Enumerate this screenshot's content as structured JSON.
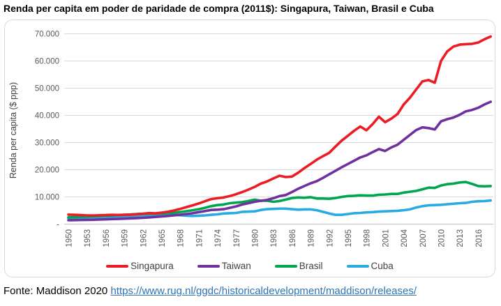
{
  "title": "Renda per capita em poder de paridade de compra (2011$): Singapura, Taiwan, Brasil e Cuba",
  "footer": {
    "prefix": "Fonte: Maddison 2020",
    "link": "https://www.rug.nl/ggdc/historicaldevelopment/maddison/releases/"
  },
  "chart_data": {
    "type": "line",
    "title": "Renda per capita em poder de paridade de compra (2011$): Singapura, Taiwan, Brasil e Cuba",
    "xlabel": "",
    "ylabel": "Renda per capita ($ ppp)",
    "ylim": [
      0,
      70000
    ],
    "ytick_step": 10000,
    "ytick_zero_label": "-",
    "grid": "horizontal",
    "gridline_color": "#d9d9d9",
    "axis_line_color": "#bfbfbf",
    "axis_text_color": "#595959",
    "legend_position": "bottom",
    "xticks": [
      1950,
      1953,
      1956,
      1959,
      1962,
      1965,
      1968,
      1971,
      1974,
      1977,
      1980,
      1983,
      1986,
      1989,
      1992,
      1995,
      1998,
      2001,
      2004,
      2007,
      2010,
      2013,
      2016
    ],
    "x": [
      1950,
      1951,
      1952,
      1953,
      1954,
      1955,
      1956,
      1957,
      1958,
      1959,
      1960,
      1961,
      1962,
      1963,
      1964,
      1965,
      1966,
      1967,
      1968,
      1969,
      1970,
      1971,
      1972,
      1973,
      1974,
      1975,
      1976,
      1977,
      1978,
      1979,
      1980,
      1981,
      1982,
      1983,
      1984,
      1985,
      1986,
      1987,
      1988,
      1989,
      1990,
      1991,
      1992,
      1993,
      1994,
      1995,
      1996,
      1997,
      1998,
      1999,
      2000,
      2001,
      2002,
      2003,
      2004,
      2005,
      2006,
      2007,
      2008,
      2009,
      2010,
      2011,
      2012,
      2013,
      2014,
      2015,
      2016,
      2017,
      2018
    ],
    "series": [
      {
        "name": "Singapura",
        "color": "#ec1c24",
        "values": [
          3500,
          3400,
          3300,
          3200,
          3150,
          3250,
          3300,
          3400,
          3350,
          3400,
          3500,
          3650,
          3800,
          4050,
          3950,
          4200,
          4550,
          5000,
          5600,
          6250,
          6900,
          7600,
          8400,
          9200,
          9500,
          9800,
          10300,
          11000,
          11800,
          12700,
          13700,
          14900,
          15700,
          16800,
          17800,
          17300,
          17500,
          18900,
          20600,
          22100,
          23700,
          25000,
          26200,
          28500,
          30700,
          32500,
          34300,
          35900,
          34500,
          36800,
          39500,
          37500,
          38800,
          40500,
          44000,
          46500,
          49500,
          52500,
          53000,
          52000,
          60000,
          63500,
          65300,
          66000,
          66200,
          66300,
          66800,
          68000,
          69000
        ]
      },
      {
        "name": "Taiwan",
        "color": "#7030a0",
        "values": [
          1400,
          1450,
          1500,
          1550,
          1600,
          1700,
          1750,
          1850,
          1900,
          2000,
          2100,
          2200,
          2300,
          2450,
          2650,
          2800,
          3000,
          3200,
          3450,
          3700,
          4000,
          4400,
          4800,
          5200,
          5300,
          5500,
          6000,
          6500,
          7200,
          7700,
          8200,
          8600,
          8900,
          9500,
          10300,
          10700,
          11800,
          13000,
          14000,
          15000,
          15800,
          17000,
          18300,
          19600,
          20900,
          22100,
          23300,
          24500,
          25300,
          26500,
          27600,
          26900,
          28200,
          29200,
          31000,
          32800,
          34600,
          35600,
          35300,
          34800,
          37800,
          38600,
          39200,
          40200,
          41500,
          42000,
          42800,
          44000,
          45000
        ]
      },
      {
        "name": "Brasil",
        "color": "#00a550",
        "values": [
          2500,
          2600,
          2700,
          2750,
          2900,
          3000,
          3050,
          3150,
          3300,
          3450,
          3550,
          3700,
          3800,
          3800,
          3850,
          3900,
          4050,
          4150,
          4450,
          4750,
          5100,
          5500,
          6000,
          6600,
          7000,
          7200,
          7700,
          7900,
          8100,
          8500,
          9000,
          8600,
          8600,
          8200,
          8500,
          9000,
          9600,
          9800,
          9700,
          9900,
          9400,
          9400,
          9300,
          9600,
          10000,
          10300,
          10400,
          10600,
          10500,
          10500,
          10800,
          10900,
          11100,
          11100,
          11600,
          11900,
          12200,
          12800,
          13400,
          13300,
          14200,
          14700,
          14900,
          15300,
          15500,
          14800,
          14000,
          13900,
          14000
        ]
      },
      {
        "name": "Cuba",
        "color": "#29abe2",
        "values": [
          2100,
          2200,
          2250,
          2150,
          2250,
          2400,
          2500,
          2650,
          2600,
          2600,
          2900,
          3000,
          3000,
          2950,
          3050,
          3100,
          3150,
          3300,
          3250,
          3100,
          3000,
          3100,
          3200,
          3400,
          3600,
          3900,
          4000,
          4100,
          4500,
          4600,
          4700,
          5200,
          5500,
          5600,
          5700,
          5700,
          5500,
          5300,
          5400,
          5400,
          5100,
          4500,
          3900,
          3400,
          3400,
          3700,
          4000,
          4100,
          4300,
          4400,
          4600,
          4700,
          4800,
          4900,
          5100,
          5400,
          6100,
          6600,
          6900,
          7000,
          7100,
          7300,
          7500,
          7700,
          7800,
          8200,
          8400,
          8500,
          8700
        ]
      }
    ]
  }
}
